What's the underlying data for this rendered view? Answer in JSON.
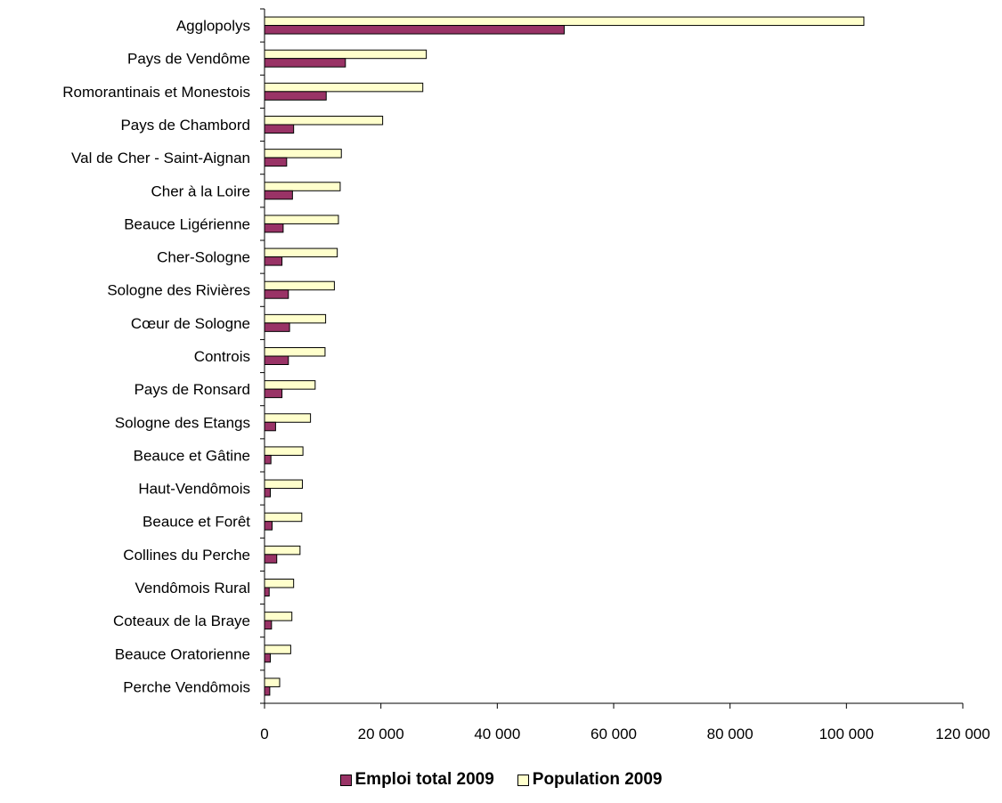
{
  "chart_data": {
    "type": "bar",
    "orientation": "horizontal",
    "categories": [
      "Agglopolys",
      "Pays de Vendôme",
      "Romorantinais et  Monestois",
      "Pays de Chambord",
      "Val de Cher - Saint-Aignan",
      "Cher à la Loire",
      "Beauce Ligérienne",
      "Cher-Sologne",
      "Sologne des Rivières",
      "Cœur de Sologne",
      "Controis",
      "Pays de Ronsard",
      "Sologne des Etangs",
      "Beauce et Gâtine",
      "Haut-Vendômois",
      "Beauce et Forêt",
      "Collines du Perche",
      "Vendômois Rural",
      "Coteaux de la Braye",
      "Beauce Oratorienne",
      "Perche Vendômois"
    ],
    "series": [
      {
        "name": "Population 2009",
        "color": "#ffffcc",
        "values": [
          103000,
          27800,
          27200,
          20300,
          13200,
          13000,
          12700,
          12500,
          12000,
          10500,
          10400,
          8700,
          7900,
          6600,
          6500,
          6400,
          6100,
          5000,
          4700,
          4500,
          2600
        ]
      },
      {
        "name": "Emploi total 2009",
        "color": "#993366",
        "values": [
          51500,
          13900,
          10600,
          5000,
          3800,
          4800,
          3200,
          3000,
          4100,
          4300,
          4100,
          3000,
          1900,
          1100,
          1000,
          1300,
          2100,
          800,
          1200,
          1000,
          900
        ]
      }
    ],
    "xlim": [
      0,
      120000
    ],
    "xticks": [
      0,
      20000,
      40000,
      60000,
      80000,
      100000,
      120000
    ],
    "xtick_labels": [
      "0",
      "20 000",
      "40 000",
      "60 000",
      "80 000",
      "100 000",
      "120 000"
    ],
    "title": "",
    "xlabel": "",
    "ylabel": "",
    "grid": false,
    "legend": {
      "position": "bottom",
      "entries": [
        {
          "label": "Emploi total 2009",
          "color": "#993366"
        },
        {
          "label": "Population 2009",
          "color": "#ffffcc"
        }
      ]
    }
  }
}
